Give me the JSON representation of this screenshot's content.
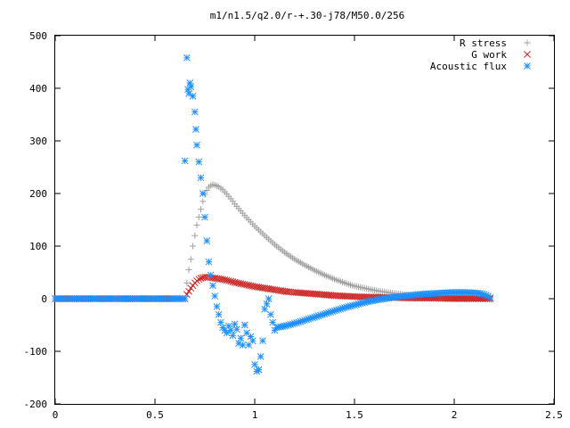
{
  "chart_data": {
    "type": "scatter",
    "title": "m1/n1.5/q2.0/r-+.30-j78/M50.0/256",
    "xlabel": "",
    "ylabel": "",
    "xlim": [
      0,
      2.5
    ],
    "ylim": [
      -200,
      500
    ],
    "x_ticks": [
      "0",
      "0.5",
      "1",
      "1.5",
      "2",
      "2.5"
    ],
    "y_ticks": [
      "500",
      "400",
      "300",
      "200",
      "100",
      "0",
      "-100",
      "-200"
    ],
    "grid": false,
    "legend_position": "top-right",
    "series": [
      {
        "name": "R stress",
        "marker": "plus",
        "color": "#a0a0a0",
        "points": [
          [
            0.0,
            0
          ],
          [
            0.1,
            0
          ],
          [
            0.2,
            0
          ],
          [
            0.3,
            0
          ],
          [
            0.4,
            0
          ],
          [
            0.5,
            0
          ],
          [
            0.6,
            0
          ],
          [
            0.65,
            0
          ],
          [
            0.66,
            30
          ],
          [
            0.67,
            55
          ],
          [
            0.68,
            75
          ],
          [
            0.69,
            100
          ],
          [
            0.7,
            120
          ],
          [
            0.71,
            140
          ],
          [
            0.72,
            155
          ],
          [
            0.73,
            170
          ],
          [
            0.74,
            185
          ],
          [
            0.75,
            198
          ],
          [
            0.76,
            206
          ],
          [
            0.77,
            212
          ],
          [
            0.78,
            215
          ],
          [
            0.79,
            217
          ],
          [
            0.8,
            216
          ],
          [
            0.82,
            213
          ],
          [
            0.84,
            207
          ],
          [
            0.86,
            199
          ],
          [
            0.88,
            190
          ],
          [
            0.9,
            180
          ],
          [
            0.95,
            158
          ],
          [
            1.0,
            138
          ],
          [
            1.05,
            120
          ],
          [
            1.1,
            103
          ],
          [
            1.15,
            88
          ],
          [
            1.2,
            75
          ],
          [
            1.25,
            64
          ],
          [
            1.3,
            54
          ],
          [
            1.35,
            45
          ],
          [
            1.4,
            37
          ],
          [
            1.45,
            30
          ],
          [
            1.5,
            24
          ],
          [
            1.55,
            20
          ],
          [
            1.6,
            16
          ],
          [
            1.65,
            13
          ],
          [
            1.7,
            10
          ],
          [
            1.75,
            8
          ],
          [
            1.8,
            6
          ],
          [
            1.85,
            5
          ],
          [
            1.9,
            4
          ],
          [
            1.95,
            3
          ],
          [
            2.0,
            2
          ],
          [
            2.05,
            2
          ],
          [
            2.1,
            1
          ],
          [
            2.15,
            1
          ],
          [
            2.18,
            0
          ]
        ]
      },
      {
        "name": "G work",
        "marker": "cross",
        "color": "#cc2222",
        "points": [
          [
            0.0,
            0
          ],
          [
            0.1,
            0
          ],
          [
            0.2,
            0
          ],
          [
            0.3,
            0
          ],
          [
            0.4,
            0
          ],
          [
            0.5,
            0
          ],
          [
            0.6,
            0
          ],
          [
            0.65,
            0
          ],
          [
            0.66,
            8
          ],
          [
            0.67,
            14
          ],
          [
            0.68,
            20
          ],
          [
            0.69,
            25
          ],
          [
            0.7,
            30
          ],
          [
            0.71,
            34
          ],
          [
            0.72,
            37
          ],
          [
            0.73,
            39
          ],
          [
            0.74,
            40
          ],
          [
            0.75,
            41
          ],
          [
            0.76,
            41
          ],
          [
            0.77,
            41
          ],
          [
            0.78,
            40
          ],
          [
            0.8,
            39
          ],
          [
            0.85,
            36
          ],
          [
            0.9,
            31
          ],
          [
            0.95,
            27
          ],
          [
            1.0,
            23
          ],
          [
            1.05,
            20
          ],
          [
            1.1,
            17
          ],
          [
            1.15,
            14
          ],
          [
            1.2,
            12
          ],
          [
            1.3,
            9
          ],
          [
            1.4,
            6
          ],
          [
            1.5,
            4
          ],
          [
            1.6,
            3
          ],
          [
            1.7,
            2
          ],
          [
            1.8,
            1
          ],
          [
            1.9,
            1
          ],
          [
            2.0,
            0
          ],
          [
            2.1,
            0
          ],
          [
            2.18,
            0
          ]
        ]
      },
      {
        "name": "Acoustic flux",
        "marker": "star",
        "color": "#1e90ff",
        "points": [
          [
            0.0,
            0
          ],
          [
            0.05,
            0
          ],
          [
            0.1,
            0
          ],
          [
            0.15,
            0
          ],
          [
            0.2,
            0
          ],
          [
            0.25,
            0
          ],
          [
            0.3,
            0
          ],
          [
            0.35,
            0
          ],
          [
            0.4,
            0
          ],
          [
            0.45,
            0
          ],
          [
            0.5,
            0
          ],
          [
            0.55,
            0
          ],
          [
            0.6,
            0
          ],
          [
            0.65,
            0
          ],
          [
            0.65,
            262
          ],
          [
            0.66,
            458
          ],
          [
            0.665,
            398
          ],
          [
            0.67,
            390
          ],
          [
            0.675,
            410
          ],
          [
            0.68,
            403
          ],
          [
            0.69,
            385
          ],
          [
            0.7,
            355
          ],
          [
            0.705,
            322
          ],
          [
            0.71,
            292
          ],
          [
            0.72,
            260
          ],
          [
            0.73,
            230
          ],
          [
            0.74,
            200
          ],
          [
            0.75,
            155
          ],
          [
            0.76,
            110
          ],
          [
            0.77,
            70
          ],
          [
            0.78,
            45
          ],
          [
            0.79,
            25
          ],
          [
            0.8,
            5
          ],
          [
            0.81,
            -15
          ],
          [
            0.82,
            -30
          ],
          [
            0.83,
            -45
          ],
          [
            0.84,
            -55
          ],
          [
            0.85,
            -60
          ],
          [
            0.86,
            -65
          ],
          [
            0.87,
            -52
          ],
          [
            0.88,
            -60
          ],
          [
            0.89,
            -70
          ],
          [
            0.9,
            -48
          ],
          [
            0.91,
            -58
          ],
          [
            0.92,
            -85
          ],
          [
            0.93,
            -75
          ],
          [
            0.94,
            -88
          ],
          [
            0.95,
            -50
          ],
          [
            0.96,
            -65
          ],
          [
            0.97,
            -88
          ],
          [
            0.98,
            -72
          ],
          [
            0.99,
            -80
          ],
          [
            1.0,
            -125
          ],
          [
            1.01,
            -138
          ],
          [
            1.02,
            -135
          ],
          [
            1.03,
            -110
          ],
          [
            1.04,
            -80
          ],
          [
            1.05,
            -20
          ],
          [
            1.06,
            -10
          ],
          [
            1.07,
            0
          ],
          [
            1.08,
            -30
          ],
          [
            1.09,
            -45
          ],
          [
            1.1,
            -60
          ],
          [
            1.11,
            -55
          ],
          [
            1.12,
            -54
          ],
          [
            1.15,
            -52
          ],
          [
            1.2,
            -47
          ],
          [
            1.25,
            -41
          ],
          [
            1.3,
            -35
          ],
          [
            1.35,
            -29
          ],
          [
            1.4,
            -23
          ],
          [
            1.45,
            -17
          ],
          [
            1.5,
            -12
          ],
          [
            1.55,
            -7
          ],
          [
            1.6,
            -3
          ],
          [
            1.65,
            0
          ],
          [
            1.7,
            3
          ],
          [
            1.75,
            5
          ],
          [
            1.8,
            7
          ],
          [
            1.85,
            9
          ],
          [
            1.9,
            10
          ],
          [
            1.95,
            11
          ],
          [
            2.0,
            12
          ],
          [
            2.05,
            12
          ],
          [
            2.1,
            11
          ],
          [
            2.13,
            10
          ],
          [
            2.15,
            8
          ],
          [
            2.17,
            5
          ],
          [
            2.18,
            2
          ]
        ]
      }
    ]
  }
}
